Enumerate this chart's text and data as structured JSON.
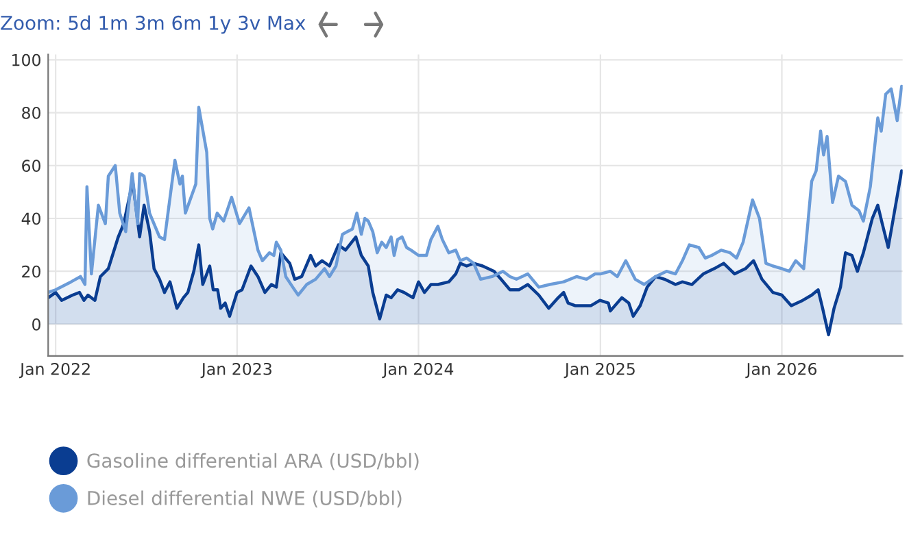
{
  "chart_data": {
    "type": "area",
    "annotations": [
      "Zoom: 5d 1m 3m 6m 1y 3v Max"
    ],
    "xlim": [
      "2021-12-17",
      "2026-09-01"
    ],
    "xticks": [
      {
        "value": "2022-01-01",
        "label": "Jan 2022"
      },
      {
        "value": "2023-01-01",
        "label": "Jan 2023"
      },
      {
        "value": "2024-01-01",
        "label": "Jan 2024"
      },
      {
        "value": "2025-01-01",
        "label": "Jan 2025"
      },
      {
        "value": "2026-01-01",
        "label": "Jan 2026"
      }
    ],
    "ylim": [
      -12,
      102
    ],
    "yticks": [
      0,
      20,
      40,
      60,
      80,
      100
    ],
    "grid": true,
    "legend": "bottom",
    "series": [
      {
        "name": "Gasoline differential ARA (USD/bbl)",
        "color": "#0a3d91",
        "x": [
          "2021-12-17",
          "2022-01-01",
          "2022-01-13",
          "2022-02-04",
          "2022-02-18",
          "2022-02-27",
          "2022-03-07",
          "2022-03-21",
          "2022-04-01",
          "2022-04-17",
          "2022-05-07",
          "2022-05-18",
          "2022-06-05",
          "2022-06-19",
          "2022-06-28",
          "2022-07-09",
          "2022-07-18",
          "2022-07-29",
          "2022-08-08",
          "2022-08-19",
          "2022-09-02",
          "2022-09-15",
          "2022-09-24",
          "2022-10-06",
          "2022-10-16",
          "2022-10-24",
          "2022-11-07",
          "2022-11-14",
          "2022-11-23",
          "2022-11-29",
          "2022-12-08",
          "2022-12-17",
          "2023-01-01",
          "2023-01-11",
          "2023-01-29",
          "2023-02-12",
          "2023-02-26",
          "2023-03-11",
          "2023-03-21",
          "2023-03-30",
          "2023-04-17",
          "2023-04-27",
          "2023-05-11",
          "2023-05-29",
          "2023-06-08",
          "2023-06-21",
          "2023-07-06",
          "2023-07-24",
          "2023-08-07",
          "2023-08-28",
          "2023-09-08",
          "2023-09-22",
          "2023-10-01",
          "2023-10-15",
          "2023-10-28",
          "2023-11-07",
          "2023-11-20",
          "2023-12-03",
          "2023-12-21",
          "2024-01-01",
          "2024-01-13",
          "2024-01-26",
          "2024-02-09",
          "2024-03-02",
          "2024-03-16",
          "2024-03-25",
          "2024-04-07",
          "2024-04-21",
          "2024-05-09",
          "2024-06-01",
          "2024-06-15",
          "2024-07-03",
          "2024-07-21",
          "2024-08-08",
          "2024-08-30",
          "2024-09-19",
          "2024-10-08",
          "2024-10-19",
          "2024-10-28",
          "2024-11-11",
          "2024-12-13",
          "2024-12-31",
          "2025-01-17",
          "2025-01-21",
          "2025-02-13",
          "2025-02-27",
          "2025-03-08",
          "2025-03-22",
          "2025-04-05",
          "2025-04-22",
          "2025-05-10",
          "2025-06-01",
          "2025-06-15",
          "2025-07-04",
          "2025-07-27",
          "2025-08-18",
          "2025-09-06",
          "2025-09-28",
          "2025-10-20",
          "2025-11-05",
          "2025-11-22",
          "2025-12-14",
          "2026-01-01",
          "2026-01-20",
          "2026-02-12",
          "2026-03-02",
          "2026-03-15",
          "2026-03-24",
          "2026-04-05",
          "2026-04-16",
          "2026-04-29",
          "2026-05-09",
          "2026-05-22",
          "2026-06-02",
          "2026-06-14",
          "2026-07-02",
          "2026-07-13",
          "2026-07-22",
          "2026-08-03",
          "2026-08-16",
          "2026-08-30"
        ],
        "values": [
          10,
          12,
          9,
          11,
          12,
          9,
          11,
          9,
          18,
          21,
          33,
          38,
          54,
          33,
          45,
          35,
          21,
          17,
          12,
          16,
          6,
          10,
          12,
          20,
          30,
          15,
          22,
          13,
          13,
          6,
          8,
          3,
          12,
          13,
          22,
          18,
          12,
          15,
          14,
          27,
          23,
          17,
          18,
          26,
          22,
          24,
          22,
          30,
          28,
          33,
          26,
          22,
          12,
          2,
          11,
          10,
          13,
          12,
          10,
          16,
          12,
          15,
          15,
          16,
          19,
          23,
          22,
          23,
          22,
          20,
          17,
          13,
          13,
          15,
          11,
          6,
          10,
          12,
          8,
          7,
          7,
          9,
          8,
          5,
          10,
          8,
          3,
          7,
          14,
          18,
          17,
          15,
          16,
          15,
          19,
          21,
          23,
          19,
          21,
          24,
          17,
          12,
          11,
          7,
          9,
          11,
          13,
          6,
          -4,
          6,
          14,
          27,
          26,
          20,
          27,
          40,
          45,
          38,
          29,
          43,
          58
        ]
      },
      {
        "name": "Diesel differential NWE (USD/bbl)",
        "color": "#6a9bd8",
        "x": [
          "2021-12-17",
          "2022-01-01",
          "2022-02-01",
          "2022-02-20",
          "2022-03-01",
          "2022-03-05",
          "2022-03-14",
          "2022-03-28",
          "2022-04-11",
          "2022-04-17",
          "2022-05-01",
          "2022-05-10",
          "2022-05-22",
          "2022-06-04",
          "2022-06-15",
          "2022-06-19",
          "2022-06-28",
          "2022-07-09",
          "2022-07-29",
          "2022-08-08",
          "2022-08-29",
          "2022-09-08",
          "2022-09-13",
          "2022-09-19",
          "2022-10-10",
          "2022-10-16",
          "2022-11-01",
          "2022-11-07",
          "2022-11-13",
          "2022-11-22",
          "2022-12-05",
          "2022-12-21",
          "2023-01-06",
          "2023-01-25",
          "2023-02-03",
          "2023-02-12",
          "2023-02-21",
          "2023-03-07",
          "2023-03-16",
          "2023-03-21",
          "2023-03-30",
          "2023-04-09",
          "2023-04-23",
          "2023-05-04",
          "2023-05-21",
          "2023-06-08",
          "2023-06-26",
          "2023-07-06",
          "2023-07-19",
          "2023-08-01",
          "2023-08-21",
          "2023-08-30",
          "2023-09-08",
          "2023-09-15",
          "2023-09-22",
          "2023-10-01",
          "2023-10-10",
          "2023-10-19",
          "2023-10-28",
          "2023-11-07",
          "2023-11-13",
          "2023-11-20",
          "2023-11-29",
          "2023-12-08",
          "2023-12-17",
          "2024-01-01",
          "2024-01-17",
          "2024-01-26",
          "2024-02-09",
          "2024-02-18",
          "2024-03-02",
          "2024-03-16",
          "2024-03-25",
          "2024-04-07",
          "2024-04-21",
          "2024-05-05",
          "2024-05-28",
          "2024-06-19",
          "2024-07-03",
          "2024-07-16",
          "2024-08-08",
          "2024-08-30",
          "2024-09-21",
          "2024-10-19",
          "2024-11-14",
          "2024-12-04",
          "2024-12-21",
          "2025-01-01",
          "2025-01-21",
          "2025-02-04",
          "2025-02-21",
          "2025-03-12",
          "2025-03-30",
          "2025-04-22",
          "2025-05-14",
          "2025-06-01",
          "2025-06-15",
          "2025-06-29",
          "2025-07-18",
          "2025-07-31",
          "2025-08-13",
          "2025-09-01",
          "2025-09-19",
          "2025-10-02",
          "2025-10-15",
          "2025-11-03",
          "2025-11-17",
          "2025-11-30",
          "2025-12-14",
          "2026-01-01",
          "2026-01-16",
          "2026-01-29",
          "2026-02-14",
          "2026-03-02",
          "2026-03-11",
          "2026-03-20",
          "2026-03-26",
          "2026-04-02",
          "2026-04-13",
          "2026-04-25",
          "2026-05-09",
          "2026-05-22",
          "2026-06-05",
          "2026-06-14",
          "2026-06-28",
          "2026-07-13",
          "2026-07-20",
          "2026-07-29",
          "2026-08-09",
          "2026-08-21",
          "2026-08-30"
        ],
        "values": [
          12,
          13,
          16,
          18,
          15,
          52,
          19,
          45,
          38,
          56,
          60,
          42,
          35,
          57,
          38,
          57,
          56,
          42,
          33,
          32,
          62,
          53,
          56,
          42,
          53,
          82,
          65,
          40,
          36,
          42,
          39,
          48,
          38,
          44,
          36,
          28,
          24,
          27,
          26,
          31,
          28,
          18,
          14,
          11,
          15,
          17,
          21,
          18,
          22,
          34,
          36,
          42,
          34,
          40,
          39,
          35,
          27,
          31,
          29,
          33,
          26,
          32,
          33,
          29,
          28,
          26,
          26,
          32,
          37,
          32,
          27,
          28,
          24,
          25,
          23,
          17,
          18,
          20,
          18,
          17,
          19,
          14,
          15,
          16,
          18,
          17,
          19,
          19,
          20,
          18,
          24,
          17,
          15,
          18,
          20,
          19,
          24,
          30,
          29,
          25,
          26,
          28,
          27,
          25,
          31,
          47,
          40,
          23,
          22,
          21,
          20,
          24,
          21,
          54,
          58,
          73,
          64,
          71,
          46,
          56,
          54,
          45,
          43,
          39,
          52,
          78,
          73,
          87,
          89,
          77,
          90
        ]
      }
    ]
  }
}
